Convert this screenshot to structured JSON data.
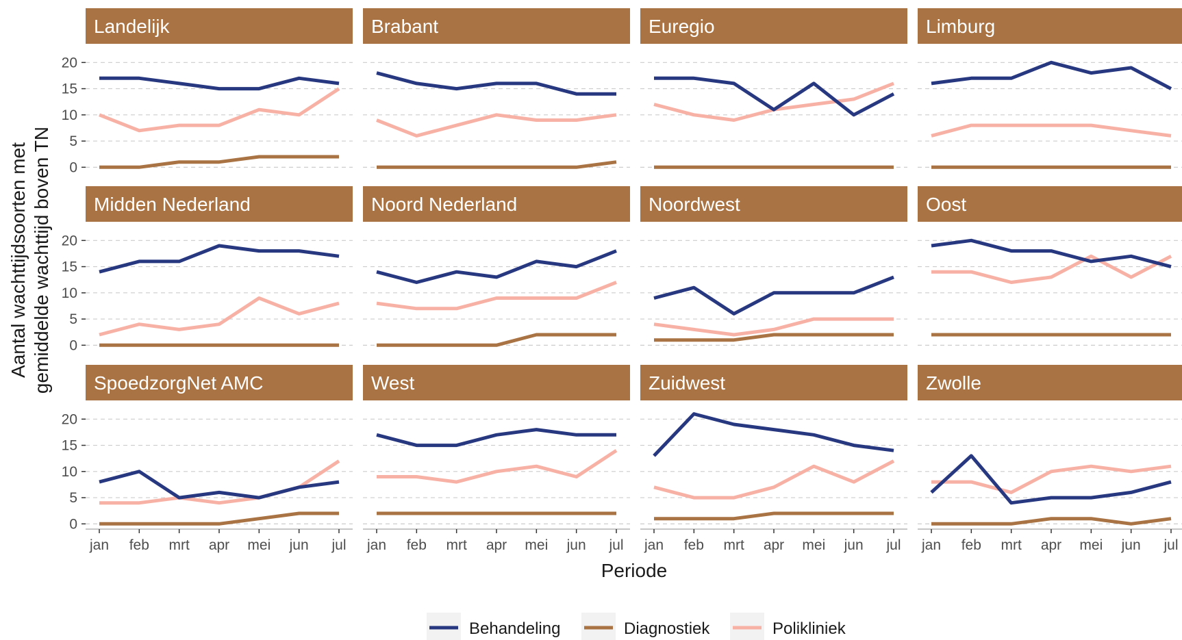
{
  "chart_data": {
    "type": "line",
    "xlabel": "Periode",
    "ylabel_lines": [
      "Aantal wachttijdsoorten met",
      "gemiddelde wachttijd boven TN"
    ],
    "x": [
      "jan",
      "feb",
      "mrt",
      "apr",
      "mei",
      "jun",
      "jul"
    ],
    "ylim": [
      -1,
      22
    ],
    "yticks": [
      0,
      5,
      10,
      15,
      20
    ],
    "grid": "horizontal dashed",
    "legend_position": "bottom",
    "colors": {
      "Behandeling": "#283880",
      "Diagnostiek": "#aa7343",
      "Polikliniek": "#f8b1a5",
      "strip": "#aa7343",
      "grid": "#cccccc",
      "axis": "#b3b3b3"
    },
    "series_names": [
      "Behandeling",
      "Diagnostiek",
      "Polikliniek"
    ],
    "panels": [
      {
        "title": "Landelijk",
        "series": [
          {
            "name": "Behandeling",
            "values": [
              17,
              17,
              16,
              15,
              15,
              17,
              16
            ]
          },
          {
            "name": "Diagnostiek",
            "values": [
              0,
              0,
              1,
              1,
              2,
              2,
              2
            ]
          },
          {
            "name": "Polikliniek",
            "values": [
              10,
              7,
              8,
              8,
              11,
              10,
              15
            ]
          }
        ]
      },
      {
        "title": "Brabant",
        "series": [
          {
            "name": "Behandeling",
            "values": [
              18,
              16,
              15,
              16,
              16,
              14,
              14
            ]
          },
          {
            "name": "Diagnostiek",
            "values": [
              0,
              0,
              0,
              0,
              0,
              0,
              1
            ]
          },
          {
            "name": "Polikliniek",
            "values": [
              9,
              6,
              8,
              10,
              9,
              9,
              10
            ]
          }
        ]
      },
      {
        "title": "Euregio",
        "series": [
          {
            "name": "Behandeling",
            "values": [
              17,
              17,
              16,
              11,
              16,
              10,
              14
            ]
          },
          {
            "name": "Diagnostiek",
            "values": [
              0,
              0,
              0,
              0,
              0,
              0,
              0
            ]
          },
          {
            "name": "Polikliniek",
            "values": [
              12,
              10,
              9,
              11,
              12,
              13,
              16
            ]
          }
        ]
      },
      {
        "title": "Limburg",
        "series": [
          {
            "name": "Behandeling",
            "values": [
              16,
              17,
              17,
              20,
              18,
              19,
              15
            ]
          },
          {
            "name": "Diagnostiek",
            "values": [
              0,
              0,
              0,
              0,
              0,
              0,
              0
            ]
          },
          {
            "name": "Polikliniek",
            "values": [
              6,
              8,
              8,
              8,
              8,
              7,
              6
            ]
          }
        ]
      },
      {
        "title": "Midden Nederland",
        "series": [
          {
            "name": "Behandeling",
            "values": [
              14,
              16,
              16,
              19,
              18,
              18,
              17
            ]
          },
          {
            "name": "Diagnostiek",
            "values": [
              0,
              0,
              0,
              0,
              0,
              0,
              0
            ]
          },
          {
            "name": "Polikliniek",
            "values": [
              2,
              4,
              3,
              4,
              9,
              6,
              8
            ]
          }
        ]
      },
      {
        "title": "Noord Nederland",
        "series": [
          {
            "name": "Behandeling",
            "values": [
              14,
              12,
              14,
              13,
              16,
              15,
              18
            ]
          },
          {
            "name": "Diagnostiek",
            "values": [
              0,
              0,
              0,
              0,
              2,
              2,
              2
            ]
          },
          {
            "name": "Polikliniek",
            "values": [
              8,
              7,
              7,
              9,
              9,
              9,
              12
            ]
          }
        ]
      },
      {
        "title": "Noordwest",
        "series": [
          {
            "name": "Behandeling",
            "values": [
              9,
              11,
              6,
              10,
              10,
              10,
              13
            ]
          },
          {
            "name": "Diagnostiek",
            "values": [
              1,
              1,
              1,
              2,
              2,
              2,
              2
            ]
          },
          {
            "name": "Polikliniek",
            "values": [
              4,
              3,
              2,
              3,
              5,
              5,
              5
            ]
          }
        ]
      },
      {
        "title": "Oost",
        "series": [
          {
            "name": "Behandeling",
            "values": [
              19,
              20,
              18,
              18,
              16,
              17,
              15
            ]
          },
          {
            "name": "Diagnostiek",
            "values": [
              2,
              2,
              2,
              2,
              2,
              2,
              2
            ]
          },
          {
            "name": "Polikliniek",
            "values": [
              14,
              14,
              12,
              13,
              17,
              13,
              17
            ]
          }
        ]
      },
      {
        "title": "SpoedzorgNet AMC",
        "series": [
          {
            "name": "Behandeling",
            "values": [
              8,
              10,
              5,
              6,
              5,
              7,
              8
            ]
          },
          {
            "name": "Diagnostiek",
            "values": [
              0,
              0,
              0,
              0,
              1,
              2,
              2
            ]
          },
          {
            "name": "Polikliniek",
            "values": [
              4,
              4,
              5,
              4,
              5,
              7,
              12
            ]
          }
        ]
      },
      {
        "title": "West",
        "series": [
          {
            "name": "Behandeling",
            "values": [
              17,
              15,
              15,
              17,
              18,
              17,
              17
            ]
          },
          {
            "name": "Diagnostiek",
            "values": [
              2,
              2,
              2,
              2,
              2,
              2,
              2
            ]
          },
          {
            "name": "Polikliniek",
            "values": [
              9,
              9,
              8,
              10,
              11,
              9,
              14
            ]
          }
        ]
      },
      {
        "title": "Zuidwest",
        "series": [
          {
            "name": "Behandeling",
            "values": [
              13,
              21,
              19,
              18,
              17,
              15,
              14
            ]
          },
          {
            "name": "Diagnostiek",
            "values": [
              1,
              1,
              1,
              2,
              2,
              2,
              2
            ]
          },
          {
            "name": "Polikliniek",
            "values": [
              7,
              5,
              5,
              7,
              11,
              8,
              12
            ]
          }
        ]
      },
      {
        "title": "Zwolle",
        "series": [
          {
            "name": "Behandeling",
            "values": [
              6,
              13,
              4,
              5,
              5,
              6,
              8
            ]
          },
          {
            "name": "Diagnostiek",
            "values": [
              0,
              0,
              0,
              1,
              1,
              0,
              1
            ]
          },
          {
            "name": "Polikliniek",
            "values": [
              8,
              8,
              6,
              10,
              11,
              10,
              11
            ]
          }
        ]
      }
    ]
  }
}
